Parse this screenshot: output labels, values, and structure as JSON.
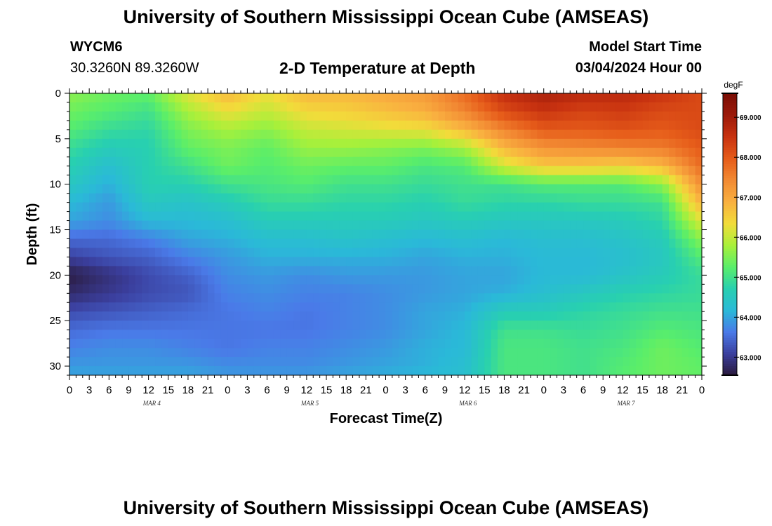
{
  "header": {
    "title": "University of Southern Mississippi Ocean Cube (AMSEAS)",
    "station": "WYCM6",
    "coords": "30.3260N  89.3260W",
    "plot_title": "2-D Temperature at Depth",
    "model_start_label": "Model Start Time",
    "model_start_value": "03/04/2024 Hour 00"
  },
  "footer": {
    "title": "University of Southern Mississippi Ocean Cube (AMSEAS)"
  },
  "chart_data": {
    "type": "heatmap",
    "xlabel": "Forecast Time(Z)",
    "ylabel": "Depth (ft)",
    "x_tick_labels": [
      "0",
      "3",
      "6",
      "9",
      "12",
      "15",
      "18",
      "21",
      "0",
      "3",
      "6",
      "9",
      "12",
      "15",
      "18",
      "21",
      "0",
      "3",
      "6",
      "9",
      "12",
      "15",
      "18",
      "21",
      "0",
      "3",
      "6",
      "9",
      "12",
      "15",
      "18",
      "21",
      "0"
    ],
    "day_labels": [
      "MAR 4",
      "MAR 5",
      "MAR 6",
      "MAR 7"
    ],
    "y_tick_labels": [
      "0",
      "5",
      "10",
      "15",
      "20",
      "25",
      "30"
    ],
    "y_ticks": [
      0,
      5,
      10,
      15,
      20,
      25,
      30
    ],
    "xlim": [
      0,
      96
    ],
    "ylim": [
      31,
      0
    ],
    "colorbar": {
      "unit": "degF",
      "ticks": [
        63.0,
        64.0,
        65.0,
        66.0,
        67.0,
        68.0,
        69.0
      ],
      "tick_labels": [
        "63.000",
        "64.000",
        "65.000",
        "66.000",
        "67.000",
        "68.000",
        "69.000"
      ],
      "range": [
        62.55,
        69.6
      ],
      "colors": [
        "#2a1a3c",
        "#3b3f9e",
        "#4a7ae8",
        "#2ab9d8",
        "#28d0b0",
        "#5aee6a",
        "#a9f03a",
        "#f2dc3a",
        "#f9b040",
        "#f28a33",
        "#e65c1a",
        "#c83210",
        "#9c1a0a",
        "#7a0d05"
      ]
    },
    "depths": [
      0,
      2,
      4,
      6,
      8,
      10,
      12,
      14,
      16,
      18,
      20,
      22,
      24,
      26,
      28,
      30,
      31
    ],
    "times": [
      0,
      6,
      12,
      18,
      24,
      30,
      36,
      42,
      48,
      54,
      60,
      66,
      72,
      78,
      84,
      90,
      96
    ],
    "values": [
      [
        65.6,
        65.4,
        65.3,
        66.2,
        66.8,
        66.3,
        66.8,
        66.8,
        67.0,
        67.2,
        67.8,
        68.6,
        68.9,
        68.7,
        68.7,
        68.5,
        68.2
      ],
      [
        65.4,
        65.2,
        65.0,
        65.8,
        66.3,
        66.0,
        66.4,
        66.5,
        66.7,
        66.9,
        67.5,
        68.2,
        68.5,
        68.3,
        68.4,
        68.2,
        68.2
      ],
      [
        65.2,
        64.9,
        64.8,
        65.5,
        65.8,
        65.6,
        66.0,
        66.1,
        66.2,
        66.3,
        66.8,
        67.5,
        68.0,
        68.0,
        68.1,
        68.0,
        68.2
      ],
      [
        64.9,
        64.6,
        64.7,
        65.3,
        65.5,
        65.3,
        65.7,
        65.7,
        65.6,
        65.5,
        65.8,
        66.8,
        67.3,
        67.4,
        67.5,
        67.6,
        68.0
      ],
      [
        64.7,
        64.3,
        64.7,
        65.0,
        65.4,
        65.2,
        65.4,
        65.3,
        65.3,
        65.1,
        65.2,
        66.1,
        66.6,
        66.6,
        66.5,
        66.8,
        67.8
      ],
      [
        64.5,
        64.1,
        64.7,
        64.7,
        65.0,
        65.1,
        65.2,
        65.0,
        65.0,
        64.9,
        65.0,
        65.0,
        65.2,
        65.2,
        65.2,
        65.6,
        67.4
      ],
      [
        64.2,
        63.9,
        64.5,
        64.4,
        64.6,
        64.9,
        64.9,
        64.8,
        64.8,
        64.7,
        64.9,
        64.8,
        64.8,
        64.9,
        64.9,
        65.0,
        66.9
      ],
      [
        64.0,
        63.8,
        64.2,
        64.2,
        64.3,
        64.6,
        64.6,
        64.6,
        64.6,
        64.5,
        64.6,
        64.5,
        64.5,
        64.5,
        64.6,
        64.8,
        66.2
      ],
      [
        63.5,
        63.5,
        63.7,
        64.0,
        64.1,
        64.3,
        64.3,
        64.4,
        64.3,
        64.2,
        64.3,
        64.2,
        64.3,
        64.3,
        64.4,
        64.6,
        65.6
      ],
      [
        63.1,
        63.3,
        63.4,
        63.7,
        63.9,
        64.1,
        64.1,
        64.1,
        64.1,
        64.0,
        64.1,
        64.1,
        64.2,
        64.2,
        64.3,
        64.5,
        65.2
      ],
      [
        62.6,
        62.9,
        63.2,
        63.4,
        63.8,
        63.9,
        63.8,
        63.9,
        63.9,
        63.9,
        64.0,
        64.0,
        64.2,
        64.2,
        64.4,
        64.6,
        64.9
      ],
      [
        62.8,
        63.0,
        63.2,
        63.3,
        63.7,
        63.8,
        63.7,
        63.7,
        63.8,
        63.9,
        64.0,
        64.1,
        64.3,
        64.5,
        64.7,
        64.8,
        64.9
      ],
      [
        63.2,
        63.3,
        63.4,
        63.5,
        63.6,
        63.7,
        63.6,
        63.7,
        63.8,
        64.0,
        64.1,
        64.6,
        64.6,
        64.8,
        64.9,
        65.0,
        65.0
      ],
      [
        63.5,
        63.6,
        63.6,
        63.6,
        63.6,
        63.6,
        63.6,
        63.7,
        63.8,
        64.0,
        64.2,
        65.0,
        65.0,
        64.9,
        65.0,
        65.2,
        65.1
      ],
      [
        63.7,
        63.8,
        63.8,
        63.7,
        63.6,
        63.7,
        63.7,
        63.8,
        63.9,
        64.1,
        64.2,
        65.1,
        65.1,
        65.0,
        65.1,
        65.4,
        65.2
      ],
      [
        63.9,
        63.9,
        63.9,
        63.9,
        63.8,
        63.8,
        63.8,
        63.9,
        64.0,
        64.1,
        64.3,
        65.1,
        65.1,
        65.0,
        65.2,
        65.4,
        65.3
      ],
      [
        64.0,
        64.0,
        64.0,
        64.0,
        63.9,
        63.9,
        63.9,
        64.0,
        64.1,
        64.2,
        64.3,
        65.1,
        65.1,
        65.0,
        65.2,
        65.4,
        65.3
      ]
    ]
  }
}
